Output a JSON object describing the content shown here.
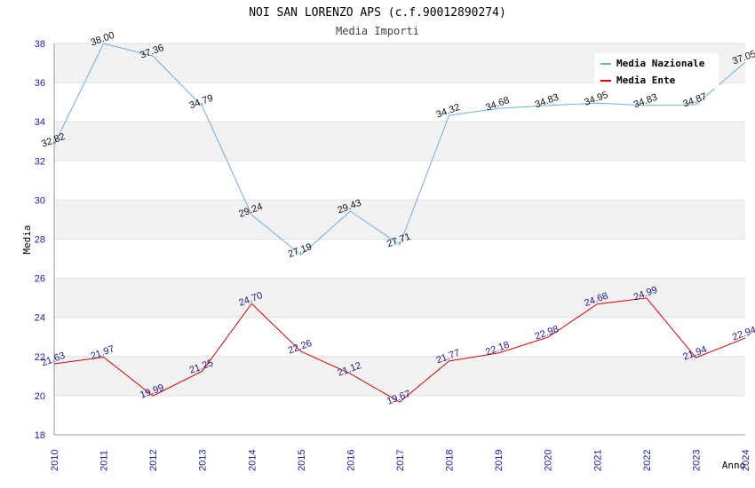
{
  "chart_data": {
    "type": "line",
    "title": "NOI SAN LORENZO APS (c.f.90012890274)",
    "subtitle": "Media Importi",
    "xlabel": "Anno",
    "ylabel": "Media",
    "ylim": [
      18,
      38
    ],
    "yticks": [
      18,
      20,
      22,
      24,
      26,
      28,
      30,
      32,
      34,
      36,
      38
    ],
    "categories": [
      "2010",
      "2011",
      "2012",
      "2013",
      "2014",
      "2015",
      "2016",
      "2017",
      "2018",
      "2019",
      "2020",
      "2021",
      "2022",
      "2023",
      "2024"
    ],
    "series": [
      {
        "name": "Media Nazionale",
        "color": "#6aaee8",
        "values": [
          32.82,
          38.0,
          37.36,
          34.79,
          29.24,
          27.19,
          29.43,
          27.71,
          34.32,
          34.68,
          34.83,
          34.95,
          34.83,
          34.87,
          37.05
        ],
        "labels": [
          "32.82",
          "38.00",
          "37.36",
          "34.79",
          "29.24",
          "27.19",
          "29.43",
          "27.71",
          "34.32",
          "34.68",
          "34.83",
          "34.95",
          "34.83",
          "34.87",
          "37.05"
        ]
      },
      {
        "name": "Media Ente",
        "color": "#e00000",
        "values": [
          21.63,
          21.97,
          19.99,
          21.25,
          24.7,
          22.26,
          21.12,
          19.67,
          21.77,
          22.18,
          22.98,
          24.68,
          24.99,
          21.94,
          22.94
        ],
        "labels": [
          "21.63",
          "21.97",
          "19.99",
          "21.25",
          "24.70",
          "22.26",
          "21.12",
          "19.67",
          "21.77",
          "22.18",
          "22.98",
          "24.68",
          "24.99",
          "21.94",
          "22.94"
        ]
      }
    ],
    "legend": "top-right",
    "grid": true
  }
}
